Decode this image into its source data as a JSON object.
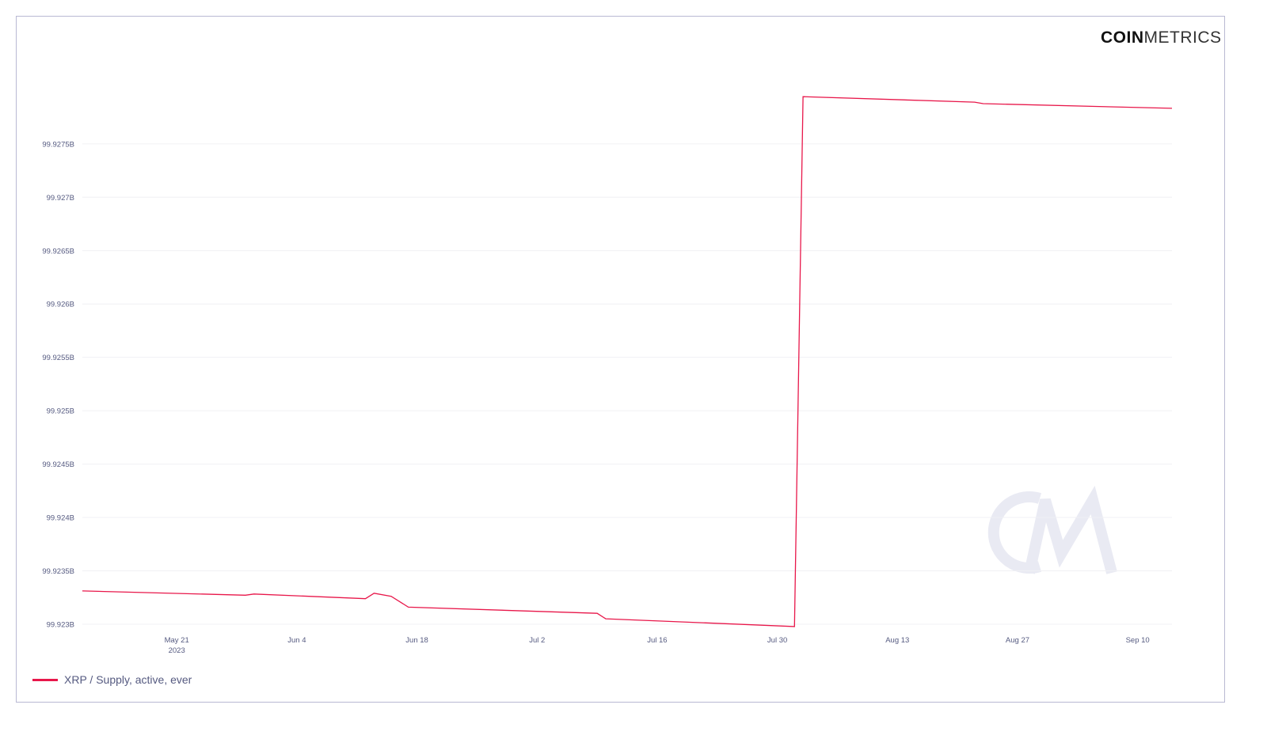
{
  "brand": {
    "bold": "COIN",
    "light": "METRICS",
    "watermark": "CM"
  },
  "chart_data": {
    "type": "line",
    "title": "",
    "xlabel": "",
    "ylabel": "",
    "x_ticks": [
      {
        "date": "2023-05-21",
        "label": "May 21",
        "sublabel": "2023"
      },
      {
        "date": "2023-06-04",
        "label": "Jun 4"
      },
      {
        "date": "2023-06-18",
        "label": "Jun 18"
      },
      {
        "date": "2023-07-02",
        "label": "Jul 2"
      },
      {
        "date": "2023-07-16",
        "label": "Jul 16"
      },
      {
        "date": "2023-07-30",
        "label": "Jul 30"
      },
      {
        "date": "2023-08-13",
        "label": "Aug 13"
      },
      {
        "date": "2023-08-27",
        "label": "Aug 27"
      },
      {
        "date": "2023-09-10",
        "label": "Sep 10"
      }
    ],
    "y_ticks": [
      {
        "value": 99.923,
        "label": "99.923B"
      },
      {
        "value": 99.9235,
        "label": "99.9235B"
      },
      {
        "value": 99.924,
        "label": "99.924B"
      },
      {
        "value": 99.9245,
        "label": "99.9245B"
      },
      {
        "value": 99.925,
        "label": "99.925B"
      },
      {
        "value": 99.9255,
        "label": "99.9255B"
      },
      {
        "value": 99.926,
        "label": "99.926B"
      },
      {
        "value": 99.9265,
        "label": "99.9265B"
      },
      {
        "value": 99.927,
        "label": "99.927B"
      },
      {
        "value": 99.9275,
        "label": "99.9275B"
      }
    ],
    "xlim": [
      "2023-05-10",
      "2023-09-14"
    ],
    "ylim": [
      99.92297,
      99.92804
    ],
    "y_unit": "B",
    "grid": true,
    "legend_position": "bottom-left",
    "series": [
      {
        "name": "XRP / Supply, active, ever",
        "color": "#e8174a",
        "points": [
          [
            "2023-05-10",
            99.923312
          ],
          [
            "2023-05-29",
            99.923272
          ],
          [
            "2023-05-30",
            99.923283
          ],
          [
            "2023-06-12",
            99.923239
          ],
          [
            "2023-06-13",
            99.92329
          ],
          [
            "2023-06-15",
            99.923261
          ],
          [
            "2023-06-17",
            99.92316
          ],
          [
            "2023-07-09",
            99.923102
          ],
          [
            "2023-07-10",
            99.923051
          ],
          [
            "2023-08-01",
            99.922978
          ],
          [
            "2023-08-02",
            99.927942
          ],
          [
            "2023-08-22",
            99.927891
          ],
          [
            "2023-08-23",
            99.927877
          ],
          [
            "2023-09-14",
            99.927833
          ]
        ]
      }
    ]
  }
}
